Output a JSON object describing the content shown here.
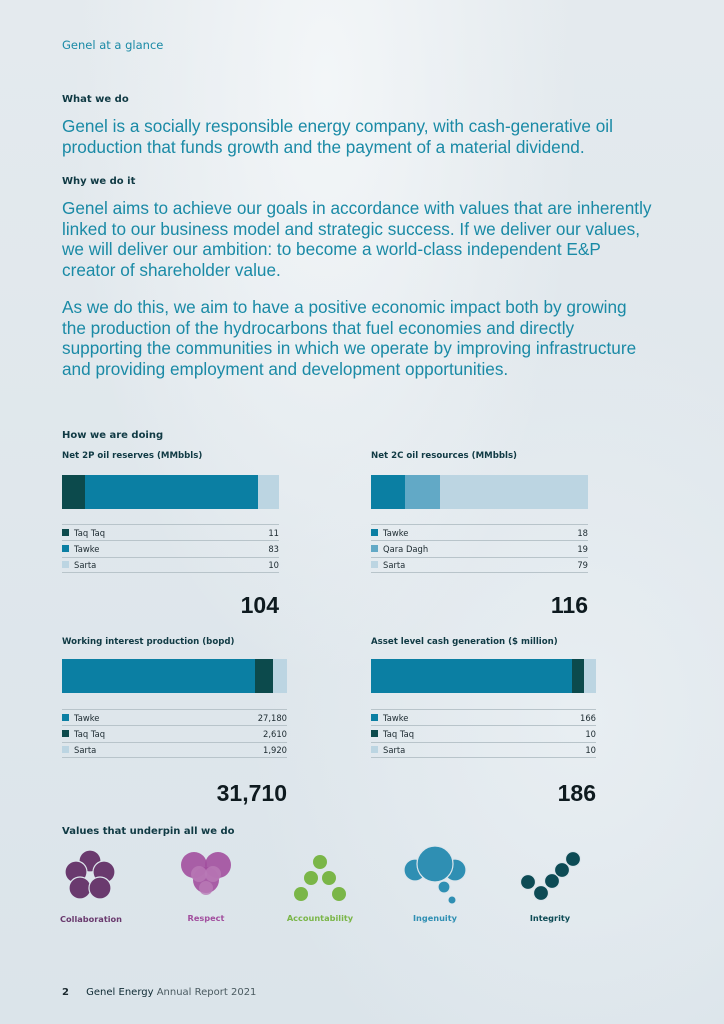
{
  "header": {
    "running_head": "Genel at a glance"
  },
  "what_we_do": {
    "heading": "What we do",
    "text": "Genel is a socially responsible energy company, with cash-generative oil production that funds growth and the payment of a material dividend."
  },
  "why_we_do_it": {
    "heading": "Why we do it",
    "para1": "Genel aims to achieve our goals in accordance with values that are inherently linked to our business model and strategic success. If we deliver our values, we will deliver our ambition: to become a world-class independent E&P creator of shareholder value.",
    "para2": "As we do this, we aim to have a positive economic impact both by growing the production of the hydrocarbons that fuel economies and directly supporting the communities in which we operate by improving infrastructure and providing employment and development opportunities."
  },
  "how_we_are_doing": {
    "heading": "How we are doing"
  },
  "colors": {
    "teal": "#0b7fa3",
    "dark": "#0c4a4c",
    "mid": "#62a9c6",
    "light": "#bcd5e2"
  },
  "chart_data": [
    {
      "type": "bar",
      "title": "Net 2P oil reserves (MMbbls)",
      "categories": [
        "Taq Taq",
        "Tawke",
        "Sarta"
      ],
      "values": [
        11,
        83,
        10
      ],
      "total": "104"
    },
    {
      "type": "bar",
      "title": "Net 2C oil resources (MMbbls)",
      "categories": [
        "Tawke",
        "Qara Dagh",
        "Sarta"
      ],
      "values": [
        18,
        19,
        79
      ],
      "total": "116"
    },
    {
      "type": "bar",
      "title": "Working interest production (bopd)",
      "categories": [
        "Tawke",
        "Taq Taq",
        "Sarta"
      ],
      "values": [
        27180,
        2610,
        1920
      ],
      "value_labels": [
        "27,180",
        "2,610",
        "1,920"
      ],
      "total": "31,710"
    },
    {
      "type": "bar",
      "title": "Asset level cash generation ($ million)",
      "categories": [
        "Tawke",
        "Taq Taq",
        "Sarta"
      ],
      "values": [
        166,
        10,
        10
      ],
      "total": "186"
    }
  ],
  "values": {
    "heading": "Values that underpin all we do",
    "items": [
      {
        "label": "Collaboration",
        "color": "#6a3a6e",
        "icon": "collaboration-icon"
      },
      {
        "label": "Respect",
        "color": "#a24f9e",
        "icon": "respect-icon"
      },
      {
        "label": "Accountability",
        "color": "#7ab648",
        "icon": "accountability-icon"
      },
      {
        "label": "Ingenuity",
        "color": "#2f8fb3",
        "icon": "ingenuity-icon"
      },
      {
        "label": "Integrity",
        "color": "#0d4b55",
        "icon": "integrity-icon"
      }
    ]
  },
  "footer": {
    "page_number": "2",
    "brand": "Genel Energy",
    "report": "Annual Report 2021"
  }
}
